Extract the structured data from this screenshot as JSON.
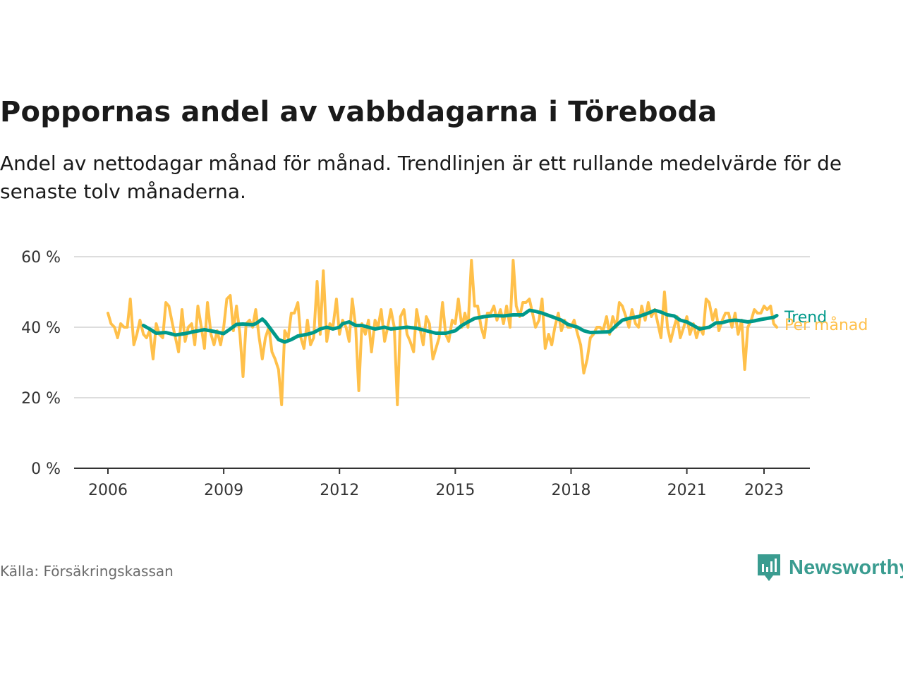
{
  "title": "Poppornas andel av vabbdagarna i Töreboda",
  "subtitle": "Andel av nettodagar månad för månad. Trendlinjen är ett rullande medelvärde för de senaste tolv månaderna.",
  "source": "Källa: Försäkringskassan",
  "logo_text": "Newsworthy",
  "colors": {
    "monthly": "#FFC04A",
    "trend": "#00998A",
    "logo": "#3A9C90",
    "grid": "#DDDDDD",
    "axis": "#333333"
  },
  "chart_data": {
    "type": "line",
    "x_unit": "year (decimal)",
    "xlim": [
      2006,
      2023.5
    ],
    "ylim": [
      0,
      60
    ],
    "y_ticks": [
      {
        "value": 0,
        "label": "0 %"
      },
      {
        "value": 20,
        "label": "20 %"
      },
      {
        "value": 40,
        "label": "40 %"
      },
      {
        "value": 60,
        "label": "60 %"
      }
    ],
    "x_ticks": [
      {
        "value": 2006,
        "label": "2006"
      },
      {
        "value": 2009,
        "label": "2009"
      },
      {
        "value": 2012,
        "label": "2012"
      },
      {
        "value": 2015,
        "label": "2015"
      },
      {
        "value": 2018,
        "label": "2018"
      },
      {
        "value": 2021,
        "label": "2021"
      },
      {
        "value": 2023,
        "label": "2023"
      }
    ],
    "grid": true,
    "series": [
      {
        "name": "Per månad",
        "color": "#FFC04A",
        "points": [
          [
            2006.0,
            44
          ],
          [
            2006.08,
            41
          ],
          [
            2006.17,
            40
          ],
          [
            2006.25,
            37
          ],
          [
            2006.33,
            41
          ],
          [
            2006.42,
            40
          ],
          [
            2006.5,
            40
          ],
          [
            2006.58,
            48
          ],
          [
            2006.67,
            35
          ],
          [
            2006.75,
            38
          ],
          [
            2006.83,
            42
          ],
          [
            2006.92,
            38
          ],
          [
            2007.0,
            37
          ],
          [
            2007.08,
            39
          ],
          [
            2007.17,
            31
          ],
          [
            2007.25,
            41
          ],
          [
            2007.33,
            38
          ],
          [
            2007.42,
            37
          ],
          [
            2007.5,
            47
          ],
          [
            2007.58,
            46
          ],
          [
            2007.67,
            41
          ],
          [
            2007.75,
            37
          ],
          [
            2007.83,
            33
          ],
          [
            2007.92,
            45
          ],
          [
            2008.0,
            36
          ],
          [
            2008.08,
            40
          ],
          [
            2008.17,
            41
          ],
          [
            2008.25,
            35
          ],
          [
            2008.33,
            46
          ],
          [
            2008.42,
            40
          ],
          [
            2008.5,
            34
          ],
          [
            2008.58,
            47
          ],
          [
            2008.67,
            38
          ],
          [
            2008.75,
            35
          ],
          [
            2008.83,
            39
          ],
          [
            2008.92,
            35
          ],
          [
            2009.0,
            40
          ],
          [
            2009.08,
            48
          ],
          [
            2009.17,
            49
          ],
          [
            2009.25,
            39
          ],
          [
            2009.33,
            46
          ],
          [
            2009.42,
            38
          ],
          [
            2009.5,
            26
          ],
          [
            2009.58,
            41
          ],
          [
            2009.67,
            42
          ],
          [
            2009.75,
            40
          ],
          [
            2009.83,
            45
          ],
          [
            2009.92,
            37
          ],
          [
            2010.0,
            31
          ],
          [
            2010.08,
            37
          ],
          [
            2010.17,
            40
          ],
          [
            2010.25,
            33
          ],
          [
            2010.33,
            31
          ],
          [
            2010.42,
            28
          ],
          [
            2010.5,
            18
          ],
          [
            2010.58,
            39
          ],
          [
            2010.67,
            37
          ],
          [
            2010.75,
            44
          ],
          [
            2010.83,
            44
          ],
          [
            2010.92,
            47
          ],
          [
            2011.0,
            37
          ],
          [
            2011.08,
            34
          ],
          [
            2011.17,
            42
          ],
          [
            2011.25,
            35
          ],
          [
            2011.33,
            37
          ],
          [
            2011.42,
            53
          ],
          [
            2011.5,
            38
          ],
          [
            2011.58,
            56
          ],
          [
            2011.67,
            36
          ],
          [
            2011.75,
            41
          ],
          [
            2011.83,
            40
          ],
          [
            2011.92,
            48
          ],
          [
            2012.0,
            38
          ],
          [
            2012.08,
            42
          ],
          [
            2012.17,
            40
          ],
          [
            2012.25,
            36
          ],
          [
            2012.33,
            48
          ],
          [
            2012.42,
            40
          ],
          [
            2012.5,
            22
          ],
          [
            2012.58,
            41
          ],
          [
            2012.67,
            38
          ],
          [
            2012.75,
            42
          ],
          [
            2012.83,
            33
          ],
          [
            2012.92,
            42
          ],
          [
            2013.0,
            40
          ],
          [
            2013.08,
            45
          ],
          [
            2013.17,
            36
          ],
          [
            2013.25,
            40
          ],
          [
            2013.33,
            45
          ],
          [
            2013.42,
            40
          ],
          [
            2013.5,
            18
          ],
          [
            2013.58,
            43
          ],
          [
            2013.67,
            45
          ],
          [
            2013.75,
            38
          ],
          [
            2013.83,
            36
          ],
          [
            2013.92,
            33
          ],
          [
            2014.0,
            45
          ],
          [
            2014.08,
            40
          ],
          [
            2014.17,
            35
          ],
          [
            2014.25,
            43
          ],
          [
            2014.33,
            41
          ],
          [
            2014.42,
            31
          ],
          [
            2014.5,
            34
          ],
          [
            2014.58,
            37
          ],
          [
            2014.67,
            47
          ],
          [
            2014.75,
            38
          ],
          [
            2014.83,
            36
          ],
          [
            2014.92,
            42
          ],
          [
            2015.0,
            41
          ],
          [
            2015.08,
            48
          ],
          [
            2015.17,
            40
          ],
          [
            2015.25,
            44
          ],
          [
            2015.33,
            40
          ],
          [
            2015.42,
            59
          ],
          [
            2015.5,
            46
          ],
          [
            2015.58,
            46
          ],
          [
            2015.67,
            40
          ],
          [
            2015.75,
            37
          ],
          [
            2015.83,
            44
          ],
          [
            2015.92,
            44
          ],
          [
            2016.0,
            46
          ],
          [
            2016.08,
            42
          ],
          [
            2016.17,
            45
          ],
          [
            2016.25,
            41
          ],
          [
            2016.33,
            46
          ],
          [
            2016.42,
            40
          ],
          [
            2016.5,
            59
          ],
          [
            2016.58,
            46
          ],
          [
            2016.67,
            43
          ],
          [
            2016.75,
            47
          ],
          [
            2016.83,
            47
          ],
          [
            2016.92,
            48
          ],
          [
            2017.0,
            44
          ],
          [
            2017.08,
            40
          ],
          [
            2017.17,
            42
          ],
          [
            2017.25,
            48
          ],
          [
            2017.33,
            34
          ],
          [
            2017.42,
            38
          ],
          [
            2017.5,
            35
          ],
          [
            2017.58,
            40
          ],
          [
            2017.67,
            44
          ],
          [
            2017.75,
            39
          ],
          [
            2017.83,
            42
          ],
          [
            2017.92,
            40
          ],
          [
            2018.0,
            40
          ],
          [
            2018.08,
            42
          ],
          [
            2018.17,
            38
          ],
          [
            2018.25,
            35
          ],
          [
            2018.33,
            27
          ],
          [
            2018.42,
            31
          ],
          [
            2018.5,
            37
          ],
          [
            2018.58,
            38
          ],
          [
            2018.67,
            40
          ],
          [
            2018.75,
            40
          ],
          [
            2018.83,
            39
          ],
          [
            2018.92,
            43
          ],
          [
            2019.0,
            38
          ],
          [
            2019.08,
            43
          ],
          [
            2019.17,
            40
          ],
          [
            2019.25,
            47
          ],
          [
            2019.33,
            46
          ],
          [
            2019.42,
            43
          ],
          [
            2019.5,
            40
          ],
          [
            2019.58,
            45
          ],
          [
            2019.67,
            41
          ],
          [
            2019.75,
            40
          ],
          [
            2019.83,
            46
          ],
          [
            2019.92,
            42
          ],
          [
            2020.0,
            47
          ],
          [
            2020.08,
            43
          ],
          [
            2020.17,
            45
          ],
          [
            2020.25,
            41
          ],
          [
            2020.33,
            37
          ],
          [
            2020.42,
            50
          ],
          [
            2020.5,
            40
          ],
          [
            2020.58,
            36
          ],
          [
            2020.67,
            40
          ],
          [
            2020.75,
            43
          ],
          [
            2020.83,
            37
          ],
          [
            2020.92,
            40
          ],
          [
            2021.0,
            43
          ],
          [
            2021.08,
            38
          ],
          [
            2021.17,
            41
          ],
          [
            2021.25,
            37
          ],
          [
            2021.33,
            40
          ],
          [
            2021.42,
            38
          ],
          [
            2021.5,
            48
          ],
          [
            2021.58,
            47
          ],
          [
            2021.67,
            42
          ],
          [
            2021.75,
            45
          ],
          [
            2021.83,
            39
          ],
          [
            2021.92,
            42
          ],
          [
            2022.0,
            44
          ],
          [
            2022.08,
            44
          ],
          [
            2022.17,
            40
          ],
          [
            2022.25,
            44
          ],
          [
            2022.33,
            38
          ],
          [
            2022.42,
            42
          ],
          [
            2022.5,
            28
          ],
          [
            2022.58,
            40
          ],
          [
            2022.67,
            42
          ],
          [
            2022.75,
            45
          ],
          [
            2022.83,
            44
          ],
          [
            2022.92,
            44
          ],
          [
            2023.0,
            46
          ],
          [
            2023.08,
            45
          ],
          [
            2023.17,
            46
          ],
          [
            2023.25,
            41
          ],
          [
            2023.33,
            40
          ]
        ]
      },
      {
        "name": "Trend",
        "color": "#00998A",
        "points": [
          [
            2006.92,
            40.5
          ],
          [
            2007.08,
            39.5
          ],
          [
            2007.25,
            38.3
          ],
          [
            2007.5,
            38.5
          ],
          [
            2007.75,
            37.8
          ],
          [
            2008.0,
            38.2
          ],
          [
            2008.25,
            38.8
          ],
          [
            2008.5,
            39.3
          ],
          [
            2008.75,
            38.8
          ],
          [
            2009.0,
            38.2
          ],
          [
            2009.17,
            39.5
          ],
          [
            2009.33,
            40.8
          ],
          [
            2009.5,
            40.9
          ],
          [
            2009.75,
            40.7
          ],
          [
            2009.83,
            41.0
          ],
          [
            2010.0,
            42.3
          ],
          [
            2010.08,
            41.5
          ],
          [
            2010.25,
            39.0
          ],
          [
            2010.42,
            36.5
          ],
          [
            2010.58,
            35.8
          ],
          [
            2010.75,
            36.5
          ],
          [
            2010.92,
            37.5
          ],
          [
            2011.17,
            38.0
          ],
          [
            2011.33,
            38.5
          ],
          [
            2011.5,
            39.5
          ],
          [
            2011.67,
            40.0
          ],
          [
            2011.83,
            39.5
          ],
          [
            2012.0,
            40.0
          ],
          [
            2012.08,
            41.0
          ],
          [
            2012.25,
            41.5
          ],
          [
            2012.42,
            40.5
          ],
          [
            2012.58,
            40.5
          ],
          [
            2012.75,
            40.0
          ],
          [
            2012.92,
            39.5
          ],
          [
            2013.17,
            40.0
          ],
          [
            2013.33,
            39.5
          ],
          [
            2013.5,
            39.7
          ],
          [
            2013.75,
            40.0
          ],
          [
            2014.0,
            39.7
          ],
          [
            2014.25,
            39.0
          ],
          [
            2014.5,
            38.3
          ],
          [
            2014.75,
            38.3
          ],
          [
            2015.0,
            39.0
          ],
          [
            2015.17,
            40.5
          ],
          [
            2015.33,
            41.5
          ],
          [
            2015.5,
            42.5
          ],
          [
            2015.75,
            43.0
          ],
          [
            2016.0,
            43.3
          ],
          [
            2016.25,
            43.2
          ],
          [
            2016.5,
            43.5
          ],
          [
            2016.75,
            43.5
          ],
          [
            2016.92,
            44.8
          ],
          [
            2017.08,
            44.5
          ],
          [
            2017.25,
            44.0
          ],
          [
            2017.5,
            43.0
          ],
          [
            2017.75,
            42.0
          ],
          [
            2017.92,
            40.8
          ],
          [
            2018.17,
            40.0
          ],
          [
            2018.33,
            39.0
          ],
          [
            2018.5,
            38.5
          ],
          [
            2018.75,
            38.6
          ],
          [
            2019.0,
            38.7
          ],
          [
            2019.17,
            40.5
          ],
          [
            2019.33,
            42.0
          ],
          [
            2019.5,
            42.5
          ],
          [
            2019.75,
            43.0
          ],
          [
            2020.0,
            44.0
          ],
          [
            2020.17,
            44.8
          ],
          [
            2020.33,
            44.3
          ],
          [
            2020.5,
            43.5
          ],
          [
            2020.67,
            43.2
          ],
          [
            2020.83,
            42.0
          ],
          [
            2021.0,
            41.5
          ],
          [
            2021.17,
            40.5
          ],
          [
            2021.33,
            39.5
          ],
          [
            2021.58,
            40.0
          ],
          [
            2021.75,
            41.2
          ],
          [
            2021.92,
            41.3
          ],
          [
            2022.08,
            41.8
          ],
          [
            2022.25,
            42.0
          ],
          [
            2022.42,
            41.8
          ],
          [
            2022.58,
            41.5
          ],
          [
            2022.75,
            41.8
          ],
          [
            2022.92,
            42.2
          ],
          [
            2023.08,
            42.5
          ],
          [
            2023.25,
            42.8
          ],
          [
            2023.33,
            43.3
          ]
        ]
      }
    ]
  }
}
